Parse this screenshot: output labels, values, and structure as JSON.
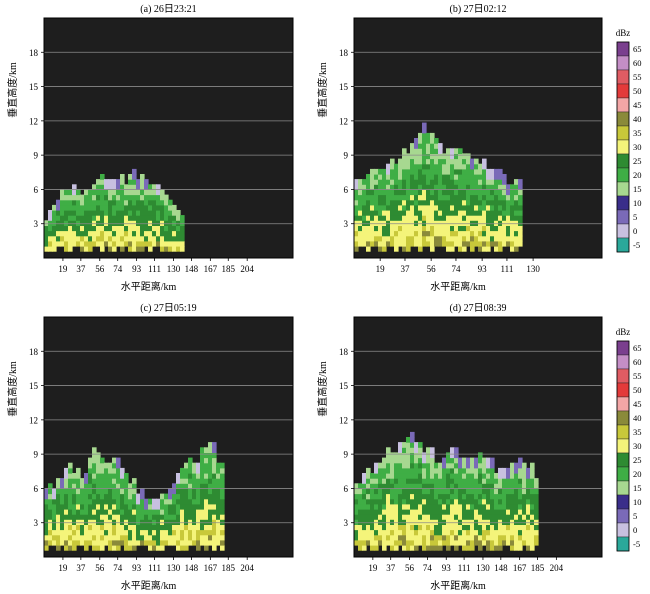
{
  "chart_data": [
    {
      "type": "heatmap",
      "title": "(a) 26日23:21",
      "xlabel": "水平距离/km",
      "ylabel": "垂直高度/km",
      "xticks": [
        19,
        37,
        56,
        74,
        93,
        111,
        130,
        148,
        167,
        185,
        204
      ],
      "yticks": [
        3,
        6,
        9,
        12,
        15,
        18
      ],
      "xlim": [
        0,
        250
      ],
      "ylim": [
        0,
        21
      ],
      "grid": true,
      "echo_profile": {
        "x": [
          0,
          10,
          20,
          30,
          40,
          50,
          60,
          70,
          80,
          90,
          100,
          110,
          120,
          130,
          140
        ],
        "top": [
          3.6,
          4.6,
          5.6,
          6.2,
          5.8,
          6.6,
          7.4,
          6.2,
          6.6,
          7.6,
          6.4,
          5.8,
          5.0,
          4.6,
          3.8
        ]
      }
    },
    {
      "type": "heatmap",
      "title": "(b) 27日02:12",
      "xlabel": "水平距离/km",
      "ylabel": "垂直高度/km",
      "xticks": [
        19,
        37,
        56,
        74,
        93,
        111,
        130
      ],
      "yticks": [
        3,
        6,
        9,
        12,
        15,
        18
      ],
      "xlim": [
        0,
        180
      ],
      "ylim": [
        0,
        21
      ],
      "grid": true,
      "echo_profile": {
        "x": [
          0,
          8,
          16,
          24,
          32,
          40,
          48,
          56,
          64,
          72,
          80,
          88,
          96,
          104,
          112,
          120
        ],
        "top": [
          6.2,
          7.2,
          7.8,
          8.2,
          8.9,
          9.8,
          11.2,
          10.6,
          9.4,
          9.0,
          9.6,
          8.6,
          8.0,
          7.0,
          6.4,
          6.2
        ]
      }
    },
    {
      "type": "heatmap",
      "title": "(c) 27日05:19",
      "xlabel": "水平距离/km",
      "ylabel": "垂直高度/km",
      "xticks": [
        19,
        37,
        56,
        74,
        93,
        111,
        130,
        148,
        167,
        185,
        204
      ],
      "yticks": [
        3,
        6,
        9,
        12,
        15,
        18
      ],
      "xlim": [
        0,
        250
      ],
      "ylim": [
        0,
        21
      ],
      "grid": true,
      "echo_profile": {
        "x": [
          0,
          12,
          24,
          36,
          48,
          60,
          72,
          84,
          96,
          108,
          120,
          132,
          144,
          156,
          168,
          180
        ],
        "top": [
          5.6,
          6.4,
          8.2,
          7.0,
          8.6,
          8.0,
          8.8,
          6.6,
          5.4,
          4.6,
          5.0,
          6.8,
          8.2,
          9.0,
          9.8,
          6.6
        ]
      }
    },
    {
      "type": "heatmap",
      "title": "(d) 27日08:39",
      "xlabel": "水平距离/km",
      "ylabel": "垂直高度/km",
      "xticks": [
        19,
        37,
        56,
        74,
        93,
        111,
        130,
        148,
        167,
        185,
        204
      ],
      "yticks": [
        3,
        6,
        9,
        12,
        15,
        18
      ],
      "xlim": [
        0,
        250
      ],
      "ylim": [
        0,
        21
      ],
      "grid": true,
      "echo_profile": {
        "x": [
          0,
          14,
          28,
          42,
          56,
          70,
          84,
          98,
          112,
          126,
          140,
          154,
          168,
          182
        ],
        "top": [
          6.4,
          7.8,
          8.6,
          9.4,
          10.4,
          9.0,
          8.4,
          9.6,
          8.2,
          8.8,
          7.6,
          8.2,
          7.8,
          7.0
        ]
      }
    }
  ],
  "colorbar": {
    "unit": "dBz",
    "levels": [
      "65",
      "60",
      "55",
      "50",
      "45",
      "40",
      "35",
      "30",
      "25",
      "20",
      "15",
      "10",
      "5",
      "0",
      "-5"
    ],
    "colors": [
      "#7a3f8e",
      "#c48ec6",
      "#e05c63",
      "#e33a3a",
      "#f3a6a6",
      "#8a8a3a",
      "#c8c83a",
      "#f4f47a",
      "#2e8b32",
      "#3fae45",
      "#a7d890",
      "#3a2e8a",
      "#7a6ab8",
      "#c8c0e0",
      "#2aa89a"
    ]
  }
}
